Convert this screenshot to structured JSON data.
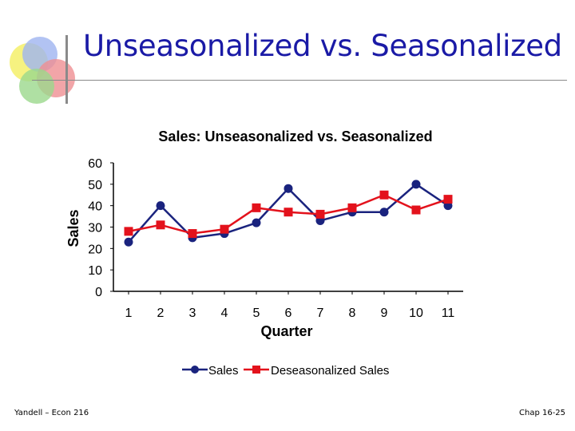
{
  "slide": {
    "title": "Unseasonalized vs. Seasonalized",
    "footer_left": "Yandell – Econ 216",
    "footer_right": "Chap 16-25"
  },
  "colors": {
    "title": "#1a1aa6",
    "sales": "#1a237e",
    "deseasonalized": "#e3121c"
  },
  "chart_data": {
    "type": "line",
    "title": "Sales: Unseasonalized vs. Seasonalized",
    "xlabel": "Quarter",
    "ylabel": "Sales",
    "categories": [
      "1",
      "2",
      "3",
      "4",
      "5",
      "6",
      "7",
      "8",
      "9",
      "10",
      "11"
    ],
    "ylim": [
      0,
      60
    ],
    "yticks": [
      "0",
      "10",
      "20",
      "30",
      "40",
      "50",
      "60"
    ],
    "grid": false,
    "legend_position": "bottom",
    "series": [
      {
        "name": "Sales",
        "marker": "circle",
        "values": [
          23,
          40,
          25,
          27,
          32,
          48,
          33,
          37,
          37,
          50,
          40
        ]
      },
      {
        "name": "Deseasonalized Sales",
        "marker": "square",
        "values": [
          28,
          31,
          27,
          29,
          39,
          37,
          36,
          39,
          45,
          38,
          43
        ]
      }
    ]
  }
}
